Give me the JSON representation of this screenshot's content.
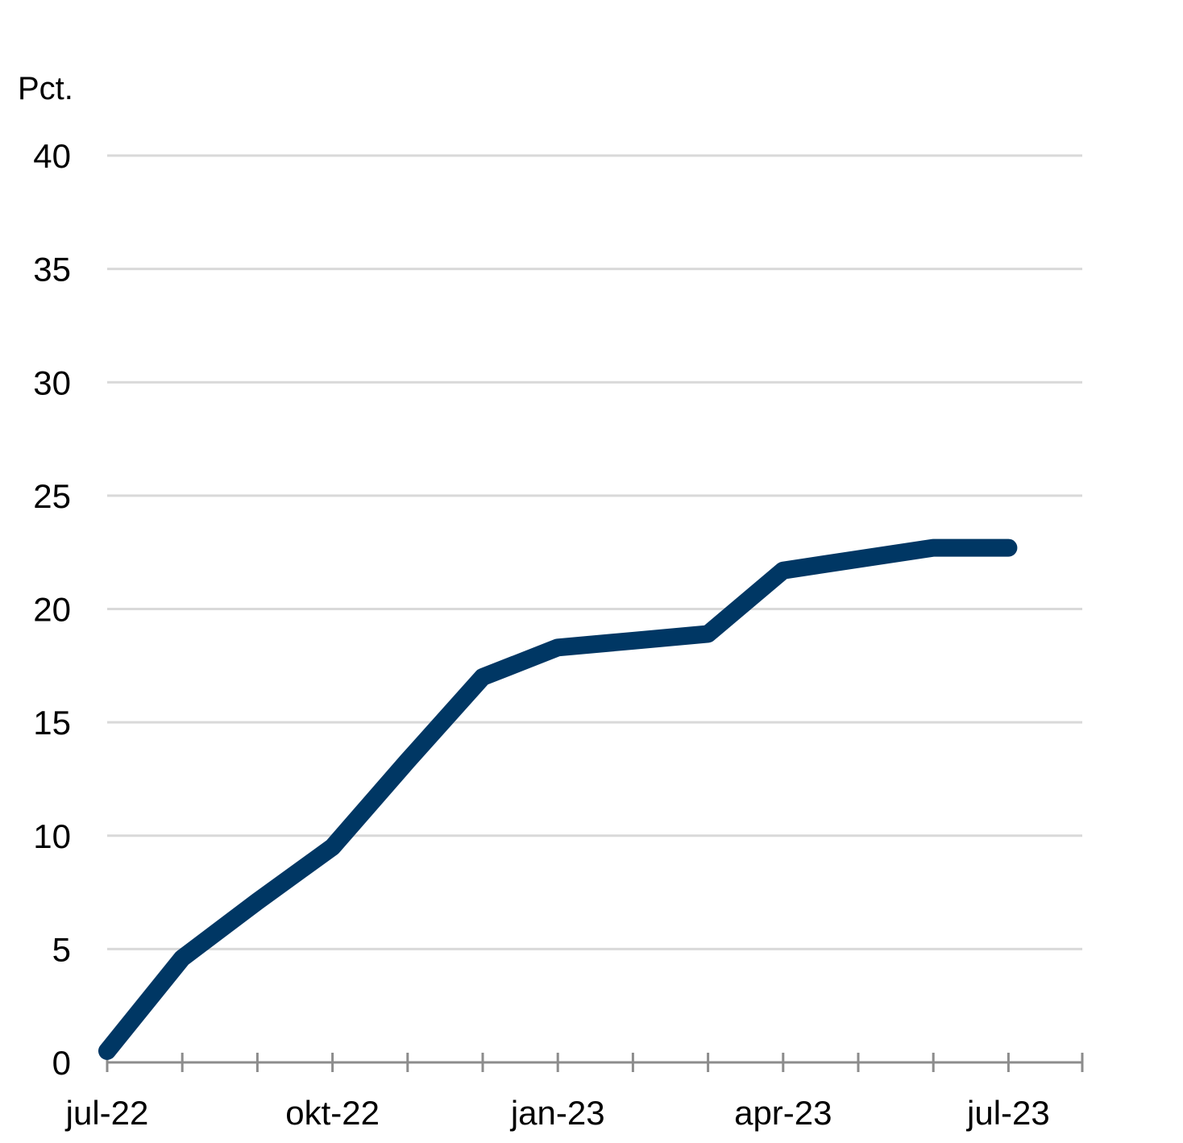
{
  "chart_data": {
    "type": "line",
    "ylabel": "Pct.",
    "ylim": [
      0,
      40
    ],
    "yticks": [
      "0",
      "5",
      "10",
      "15",
      "20",
      "25",
      "30",
      "35",
      "40"
    ],
    "xticks": [
      "jul-22",
      "okt-22",
      "jan-23",
      "apr-23",
      "jul-23"
    ],
    "x": [
      "jul-22",
      "aug-22",
      "sep-22",
      "okt-22",
      "nov-22",
      "dec-22",
      "jan-23",
      "feb-23",
      "mar-23",
      "apr-23",
      "maj-23",
      "jun-23",
      "jul-23"
    ],
    "values": [
      0.5,
      4.6,
      7.1,
      9.5,
      13.3,
      17.0,
      18.3,
      18.6,
      18.9,
      21.7,
      22.2,
      22.7,
      22.7
    ],
    "grid": true,
    "legend": "none",
    "colors": {
      "line": "#003764",
      "grid": "#d9d9d9",
      "axis": "#8c8c8c"
    }
  }
}
